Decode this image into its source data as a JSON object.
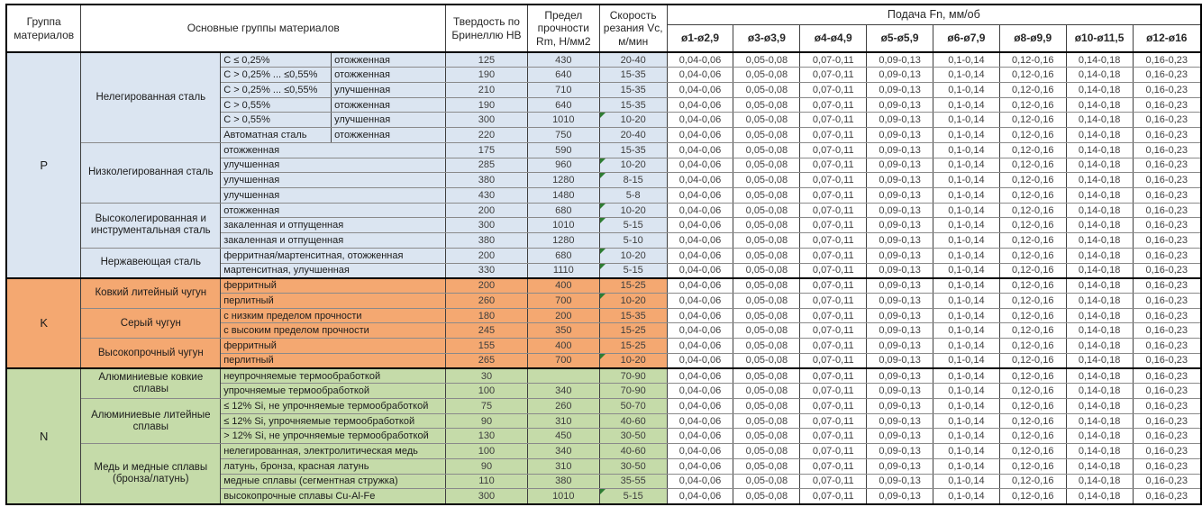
{
  "header": {
    "col_group": "Группа материалов",
    "col_materials": "Основные группы материалов",
    "col_hb": "Твердость по Бринеллю HB",
    "col_rm": "Предел прочности Rm, Н/мм2",
    "col_vc": "Скорость резания Vc, м/мин",
    "feed_title": "Подача Fn, мм/об",
    "diameters": [
      "ø1-ø2,9",
      "ø3-ø3,9",
      "ø4-ø4,9",
      "ø5-ø5,9",
      "ø6-ø7,9",
      "ø8-ø9,9",
      "ø10-ø11,5",
      "ø12-ø16"
    ]
  },
  "feed_values": [
    "0,04-0,06",
    "0,05-0,08",
    "0,07-0,11",
    "0,09-0,13",
    "0,1-0,14",
    "0,12-0,16",
    "0,14-0,18",
    "0,16-0,23"
  ],
  "marker_color": "#2e7d32",
  "groups": [
    {
      "code": "P",
      "color": "#dbe5f1",
      "subgroups": [
        {
          "name": "Нелегированная сталь",
          "rows": [
            {
              "c1": "C ≤ 0,25%",
              "c2": "отожженная",
              "hb": "125",
              "rm": "430",
              "vc": "20-40",
              "marker": false
            },
            {
              "c1": "C > 0,25% ... ≤0,55%",
              "c2": "отожженная",
              "hb": "190",
              "rm": "640",
              "vc": "15-35",
              "marker": false
            },
            {
              "c1": "C > 0,25% ... ≤0,55%",
              "c2": "улучшенная",
              "hb": "210",
              "rm": "710",
              "vc": "15-35",
              "marker": false
            },
            {
              "c1": "C > 0,55%",
              "c2": "отожженная",
              "hb": "190",
              "rm": "640",
              "vc": "15-35",
              "marker": false
            },
            {
              "c1": "C > 0,55%",
              "c2": "улучшенная",
              "hb": "300",
              "rm": "1010",
              "vc": "10-20",
              "marker": true
            },
            {
              "c1": "Автоматная сталь",
              "c2": "отожженная",
              "hb": "220",
              "rm": "750",
              "vc": "20-40",
              "marker": false
            }
          ]
        },
        {
          "name": "Низколегированная сталь",
          "rows": [
            {
              "c1": "отожженная",
              "c2": null,
              "hb": "175",
              "rm": "590",
              "vc": "15-35",
              "marker": false
            },
            {
              "c1": "улучшенная",
              "c2": null,
              "hb": "285",
              "rm": "960",
              "vc": "10-20",
              "marker": true
            },
            {
              "c1": "улучшенная",
              "c2": null,
              "hb": "380",
              "rm": "1280",
              "vc": "8-15",
              "marker": true
            },
            {
              "c1": "улучшенная",
              "c2": null,
              "hb": "430",
              "rm": "1480",
              "vc": "5-8",
              "marker": false
            }
          ]
        },
        {
          "name": "Высоколегированная и инструментальная сталь",
          "rows": [
            {
              "c1": "отожженная",
              "c2": null,
              "hb": "200",
              "rm": "680",
              "vc": "10-20",
              "marker": true
            },
            {
              "c1": "закаленная и отпущенная",
              "c2": null,
              "hb": "300",
              "rm": "1010",
              "vc": "5-15",
              "marker": true
            },
            {
              "c1": "закаленная и отпущенная",
              "c2": null,
              "hb": "380",
              "rm": "1280",
              "vc": "5-10",
              "marker": false
            }
          ]
        },
        {
          "name": "Нержавеющая сталь",
          "rows": [
            {
              "c1": "ферритная/мартенситная, отожженная",
              "c2": null,
              "hb": "200",
              "rm": "680",
              "vc": "10-20",
              "marker": true
            },
            {
              "c1": "мартенситная, улучшенная",
              "c2": null,
              "hb": "330",
              "rm": "1110",
              "vc": "5-15",
              "marker": true
            }
          ]
        }
      ]
    },
    {
      "code": "K",
      "color": "#f4a871",
      "subgroups": [
        {
          "name": "Ковкий литейный чугун",
          "rows": [
            {
              "c1": "ферритный",
              "c2": null,
              "hb": "200",
              "rm": "400",
              "vc": "15-25",
              "marker": false
            },
            {
              "c1": "перлитный",
              "c2": null,
              "hb": "260",
              "rm": "700",
              "vc": "10-20",
              "marker": true
            }
          ]
        },
        {
          "name": "Серый чугун",
          "rows": [
            {
              "c1": "с низким пределом прочности",
              "c2": null,
              "hb": "180",
              "rm": "200",
              "vc": "15-35",
              "marker": false
            },
            {
              "c1": "с высоким пределом прочности",
              "c2": null,
              "hb": "245",
              "rm": "350",
              "vc": "15-25",
              "marker": false
            }
          ]
        },
        {
          "name": "Высокопрочный чугун",
          "rows": [
            {
              "c1": "ферритный",
              "c2": null,
              "hb": "155",
              "rm": "400",
              "vc": "15-25",
              "marker": false
            },
            {
              "c1": "перлитный",
              "c2": null,
              "hb": "265",
              "rm": "700",
              "vc": "10-20",
              "marker": true
            }
          ]
        }
      ]
    },
    {
      "code": "N",
      "color": "#c5dba9",
      "subgroups": [
        {
          "name": "Алюминиевые ковкие сплавы",
          "rows": [
            {
              "c1": "неупрочняемые термообработкой",
              "c2": null,
              "hb": "30",
              "rm": "",
              "vc": "70-90",
              "marker": false
            },
            {
              "c1": "упрочняемые термообработкой",
              "c2": null,
              "hb": "100",
              "rm": "340",
              "vc": "70-90",
              "marker": false
            }
          ]
        },
        {
          "name": "Алюминиевые литейные сплавы",
          "rows": [
            {
              "c1": "≤ 12% Si, не упрочняемые термообработкой",
              "c2": null,
              "hb": "75",
              "rm": "260",
              "vc": "50-70",
              "marker": false
            },
            {
              "c1": "≤ 12% Si, упрочняемые термообработкой",
              "c2": null,
              "hb": "90",
              "rm": "310",
              "vc": "40-60",
              "marker": false
            },
            {
              "c1": "> 12% Si, не упрочняемые термообработкой",
              "c2": null,
              "hb": "130",
              "rm": "450",
              "vc": "30-50",
              "marker": false
            }
          ]
        },
        {
          "name": "Медь и медные сплавы (бронза/латунь)",
          "rows": [
            {
              "c1": "нелегированная, электролитическая медь",
              "c2": null,
              "hb": "100",
              "rm": "340",
              "vc": "40-60",
              "marker": false
            },
            {
              "c1": "латунь, бронза, красная латунь",
              "c2": null,
              "hb": "90",
              "rm": "310",
              "vc": "30-50",
              "marker": false
            },
            {
              "c1": "медные сплавы (сегментная стружка)",
              "c2": null,
              "hb": "110",
              "rm": "380",
              "vc": "35-55",
              "marker": false
            },
            {
              "c1": "высокопрочные сплавы Cu-Al-Fe",
              "c2": null,
              "hb": "300",
              "rm": "1010",
              "vc": "5-15",
              "marker": true
            }
          ]
        }
      ]
    }
  ]
}
